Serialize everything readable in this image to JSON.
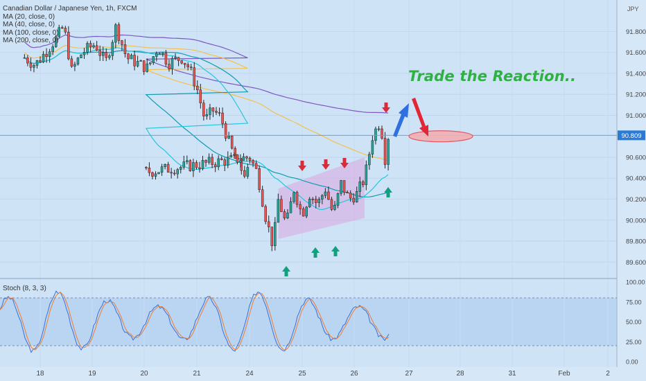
{
  "chart_data": [
    {
      "type": "candlestick",
      "title": "Canadian Dollar / Japanese Yen, 1h, FXCM",
      "y_unit": "JPY",
      "y_ticks": [
        "91.800",
        "91.600",
        "91.400",
        "91.200",
        "91.000",
        "90.600",
        "90.400",
        "90.200",
        "90.000",
        "89.800",
        "89.600"
      ],
      "ylim": [
        89.45,
        92.1
      ],
      "x_ticks": [
        "18",
        "19",
        "20",
        "21",
        "24",
        "25",
        "26",
        "27",
        "28",
        "31",
        "Feb",
        "2"
      ],
      "last_price": "90.809",
      "legend": [
        "MA (20, close, 0)",
        "MA (40, close, 0)",
        "MA (100, close, 0)",
        "MA (200, close, 0)"
      ],
      "colors": {
        "up": "#26a69a",
        "down": "#ef5350",
        "ma_fast": "#26c6da",
        "ma_mid": "#0f9bb0",
        "ma_100": "#f5c04a",
        "ma_200": "#7e57c2"
      },
      "close_path": [
        {
          "day": 17.7,
          "price": 91.55
        },
        {
          "day": 17.9,
          "price": 91.48
        },
        {
          "day": 18.1,
          "price": 91.6
        },
        {
          "day": 18.3,
          "price": 91.73
        },
        {
          "day": 18.45,
          "price": 91.85
        },
        {
          "day": 18.6,
          "price": 91.42
        },
        {
          "day": 18.8,
          "price": 91.6
        },
        {
          "day": 19.05,
          "price": 91.68
        },
        {
          "day": 19.25,
          "price": 91.5
        },
        {
          "day": 19.45,
          "price": 91.85
        },
        {
          "day": 19.65,
          "price": 91.55
        },
        {
          "day": 19.85,
          "price": 91.5
        },
        {
          "day": 20.05,
          "price": 91.45
        },
        {
          "day": 20.25,
          "price": 91.65
        },
        {
          "day": 20.45,
          "price": 91.5
        },
        {
          "day": 20.7,
          "price": 91.55
        },
        {
          "day": 20.85,
          "price": 91.45
        },
        {
          "day": 21.0,
          "price": 91.25
        },
        {
          "day": 21.15,
          "price": 90.95
        },
        {
          "day": 21.3,
          "price": 91.05
        },
        {
          "day": 21.45,
          "price": 90.98
        },
        {
          "day": 21.6,
          "price": 90.75
        },
        {
          "day": 21.75,
          "price": 90.55
        },
        {
          "day": 21.9,
          "price": 90.45
        },
        {
          "day": 24.0,
          "price": 90.6
        },
        {
          "day": 24.15,
          "price": 90.45
        },
        {
          "day": 24.3,
          "price": 90.05
        },
        {
          "day": 24.45,
          "price": 89.75
        },
        {
          "day": 24.55,
          "price": 90.2
        },
        {
          "day": 24.7,
          "price": 89.95
        },
        {
          "day": 24.85,
          "price": 90.3
        },
        {
          "day": 25.0,
          "price": 90.05
        },
        {
          "day": 25.15,
          "price": 90.25
        },
        {
          "day": 25.3,
          "price": 90.15
        },
        {
          "day": 25.45,
          "price": 90.3
        },
        {
          "day": 25.6,
          "price": 90.05
        },
        {
          "day": 25.75,
          "price": 90.35
        },
        {
          "day": 25.9,
          "price": 90.2
        },
        {
          "day": 26.05,
          "price": 90.25
        },
        {
          "day": 26.2,
          "price": 90.4
        },
        {
          "day": 26.35,
          "price": 90.8
        },
        {
          "day": 26.5,
          "price": 90.95
        },
        {
          "day": 26.6,
          "price": 90.55
        },
        {
          "day": 26.65,
          "price": 90.8
        }
      ],
      "channel": {
        "lower_start": 89.82,
        "lower_end": 90.02,
        "upper_start": 90.3,
        "upper_end": 90.6
      },
      "target_zone": {
        "price": 90.8
      },
      "annotation": "Trade the Reaction.."
    },
    {
      "type": "line",
      "title": "Stoch (8, 3, 3)",
      "y_ticks": [
        "100.00",
        "75.00",
        "50.00",
        "25.00",
        "0.00"
      ],
      "ylim": [
        0,
        100
      ],
      "levels": [
        80,
        20
      ]
    }
  ]
}
